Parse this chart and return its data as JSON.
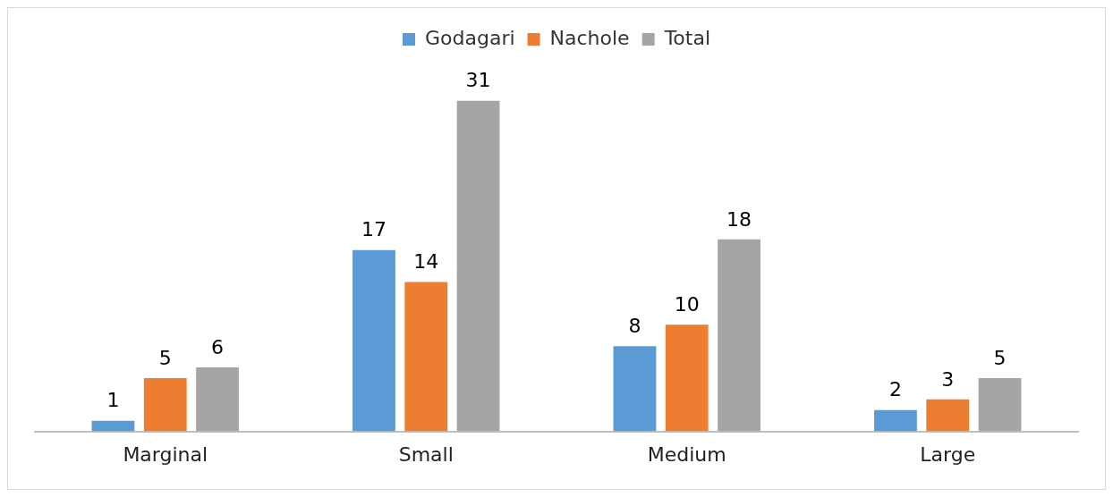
{
  "chart_data": {
    "type": "bar",
    "categories": [
      "Marginal",
      "Small",
      "Medium",
      "Large"
    ],
    "series": [
      {
        "name": "Godagari",
        "color": "#5b9bd5",
        "values": [
          1,
          17,
          8,
          2
        ]
      },
      {
        "name": "Nachole",
        "color": "#ed7d31",
        "values": [
          5,
          14,
          10,
          3
        ]
      },
      {
        "name": "Total",
        "color": "#a5a5a5",
        "values": [
          6,
          31,
          18,
          5
        ]
      }
    ],
    "data_labels": true,
    "legend": "top",
    "grid": false
  }
}
